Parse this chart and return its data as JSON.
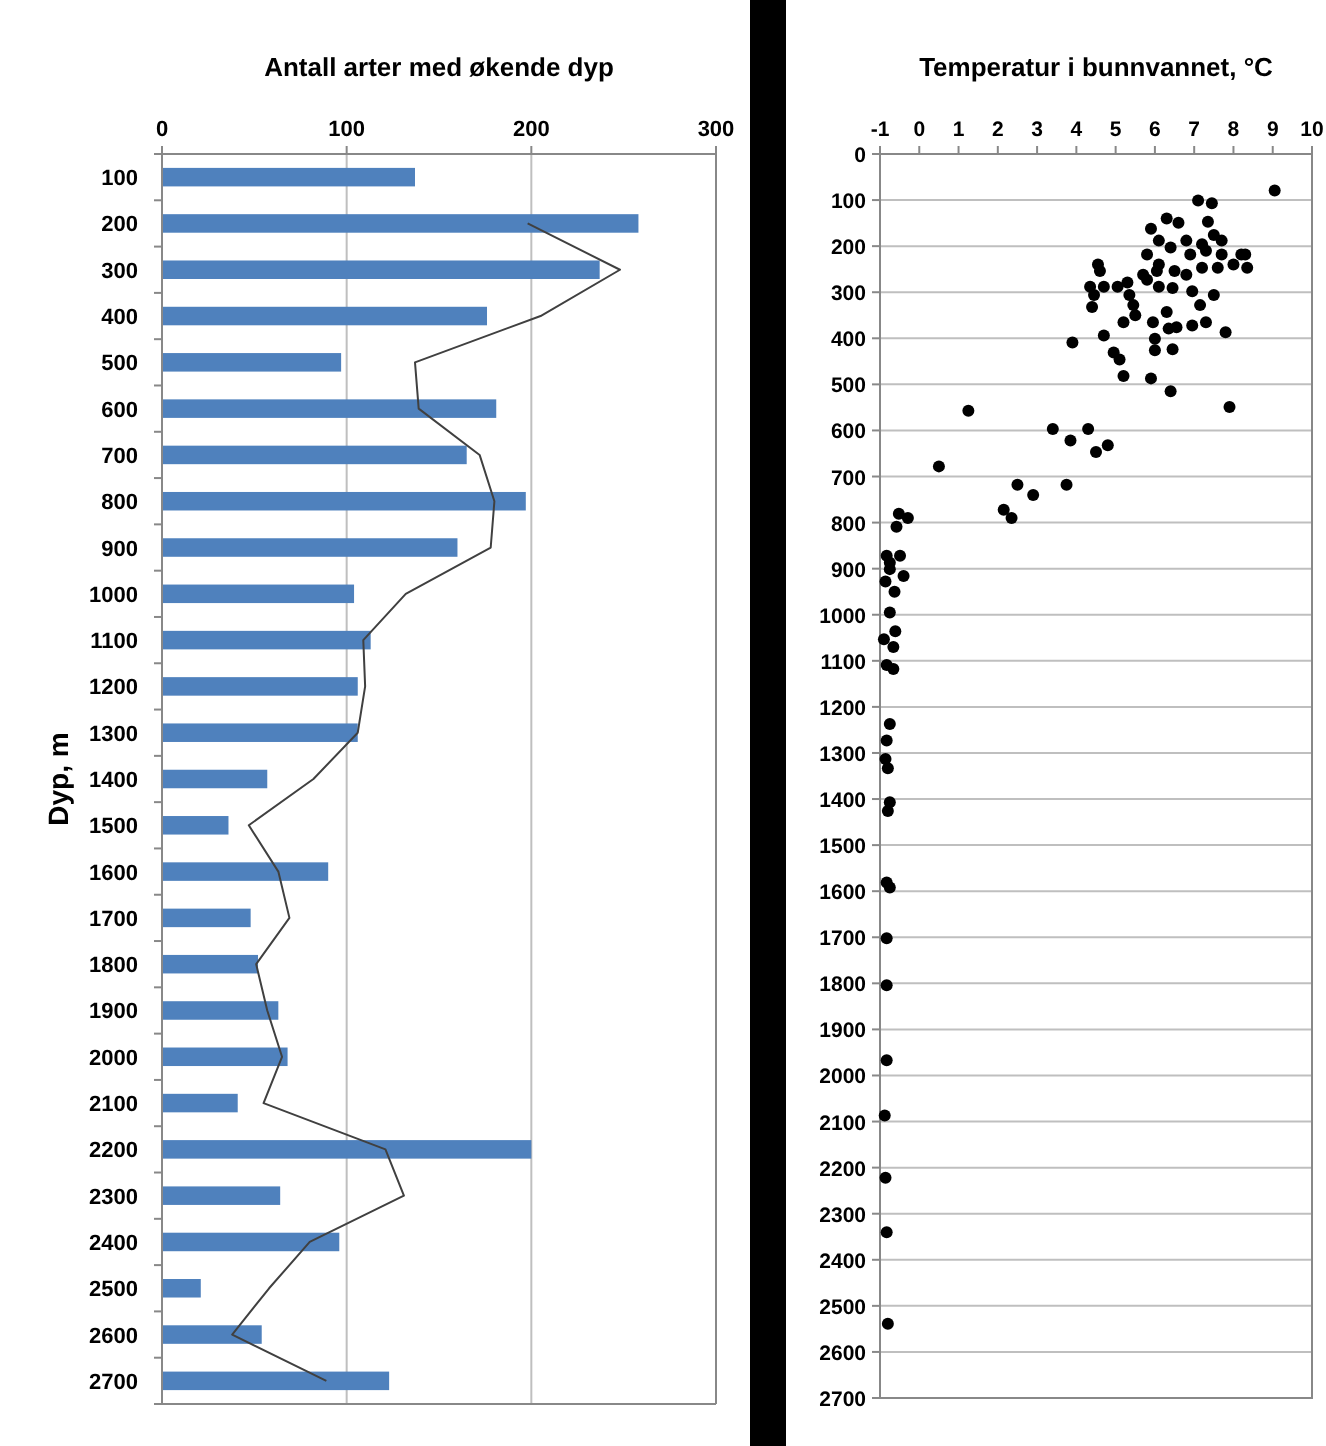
{
  "chart_data": [
    {
      "type": "bar",
      "orientation": "horizontal",
      "title": "Antall arter med økende dyp",
      "ylabel": "Dyp, m",
      "categories": [
        "100",
        "200",
        "300",
        "400",
        "500",
        "600",
        "700",
        "800",
        "900",
        "1000",
        "1100",
        "1200",
        "1300",
        "1400",
        "1500",
        "1600",
        "1700",
        "1800",
        "1900",
        "2000",
        "2100",
        "2200",
        "2300",
        "2400",
        "2500",
        "2600",
        "2700"
      ],
      "series": [
        {
          "color": "#4f81bd",
          "values": [
            137,
            258,
            237,
            176,
            97,
            181,
            165,
            197,
            160,
            104,
            113,
            106,
            106,
            57,
            36,
            90,
            48,
            52,
            63,
            68,
            41,
            200,
            64,
            96,
            21,
            54,
            123
          ]
        },
        {
          "type": "line",
          "color": "#404040",
          "values": [
            null,
            198,
            248,
            205,
            137,
            139,
            172,
            180,
            178,
            132,
            109,
            110,
            106,
            82,
            47,
            63,
            69,
            51,
            57,
            65,
            55,
            121,
            131,
            80,
            58,
            38,
            89
          ]
        }
      ],
      "xlim": [
        0,
        300
      ],
      "xticks": [
        0,
        100,
        200,
        300
      ],
      "grid": "x"
    },
    {
      "type": "scatter",
      "title": "Temperatur i bunnvannet, °C",
      "xlim": [
        -1,
        10
      ],
      "xticks": [
        -1,
        0,
        1,
        2,
        3,
        4,
        5,
        6,
        7,
        8,
        9,
        10
      ],
      "ylim": [
        2700,
        0
      ],
      "yticks": [
        0,
        100,
        200,
        300,
        400,
        500,
        600,
        700,
        800,
        900,
        1000,
        1100,
        1200,
        1300,
        1400,
        1500,
        1600,
        1700,
        1800,
        1900,
        2000,
        2100,
        2200,
        2300,
        2400,
        2500,
        2600,
        2700
      ],
      "grid": "y",
      "marker": "circle",
      "series": [
        {
          "color": "#000000",
          "x": [
            9.05,
            7.1,
            7.45,
            6.3,
            6.6,
            5.9,
            7.35,
            7.5,
            7.7,
            6.8,
            7.2,
            6.1,
            5.8,
            6.1,
            6.4,
            6.9,
            7.3,
            7.7,
            8.2,
            8.3,
            8.35,
            8.0,
            7.6,
            7.2,
            6.8,
            6.5,
            6.05,
            5.7,
            4.55,
            4.6,
            4.35,
            4.7,
            5.05,
            5.3,
            5.8,
            6.1,
            6.45,
            6.95,
            7.5,
            7.15,
            4.45,
            4.4,
            5.35,
            5.45,
            5.5,
            5.2,
            5.95,
            6.3,
            6.55,
            6.35,
            6.95,
            7.3,
            7.8,
            4.7,
            3.9,
            6.0,
            6.0,
            6.45,
            4.95,
            5.1,
            5.2,
            5.9,
            6.4,
            7.9,
            1.25,
            3.4,
            4.3,
            3.85,
            4.8,
            4.5,
            0.5,
            2.5,
            3.75,
            2.9,
            2.15,
            2.35,
            -0.52,
            -0.29,
            -0.58,
            -0.83,
            -0.49,
            -0.75,
            -0.75,
            -0.4,
            -0.86,
            -0.63,
            -0.75,
            -0.9,
            -0.61,
            -0.66,
            -0.83,
            -0.66,
            -0.75,
            -0.83,
            -0.86,
            -0.8,
            -0.75,
            -0.8,
            -0.83,
            -0.75,
            -0.83,
            -0.83,
            -0.83,
            -0.88,
            -0.86,
            -0.83,
            -0.8
          ],
          "values": [
            79,
            101,
            107,
            140,
            149,
            162,
            147,
            176,
            188,
            188,
            196,
            188,
            218,
            240,
            203,
            218,
            210,
            218,
            218,
            218,
            247,
            240,
            247,
            247,
            262,
            254,
            254,
            262,
            240,
            254,
            288,
            288,
            288,
            279,
            273,
            288,
            291,
            298,
            306,
            328,
            306,
            332,
            306,
            328,
            350,
            365,
            365,
            343,
            376,
            379,
            372,
            365,
            387,
            394,
            409,
            401,
            426,
            424,
            431,
            446,
            482,
            487,
            515,
            549,
            557,
            597,
            597,
            622,
            632,
            647,
            678,
            718,
            718,
            740,
            772,
            790,
            781,
            790,
            809,
            872,
            872,
            887,
            901,
            916,
            928,
            950,
            995,
            1053,
            1036,
            1070,
            1109,
            1118,
            1237,
            1273,
            1313,
            1333,
            1407,
            1426,
            1581,
            1592,
            1702,
            1804,
            1967,
            2087,
            2222,
            2340,
            2539
          ]
        }
      ]
    }
  ]
}
